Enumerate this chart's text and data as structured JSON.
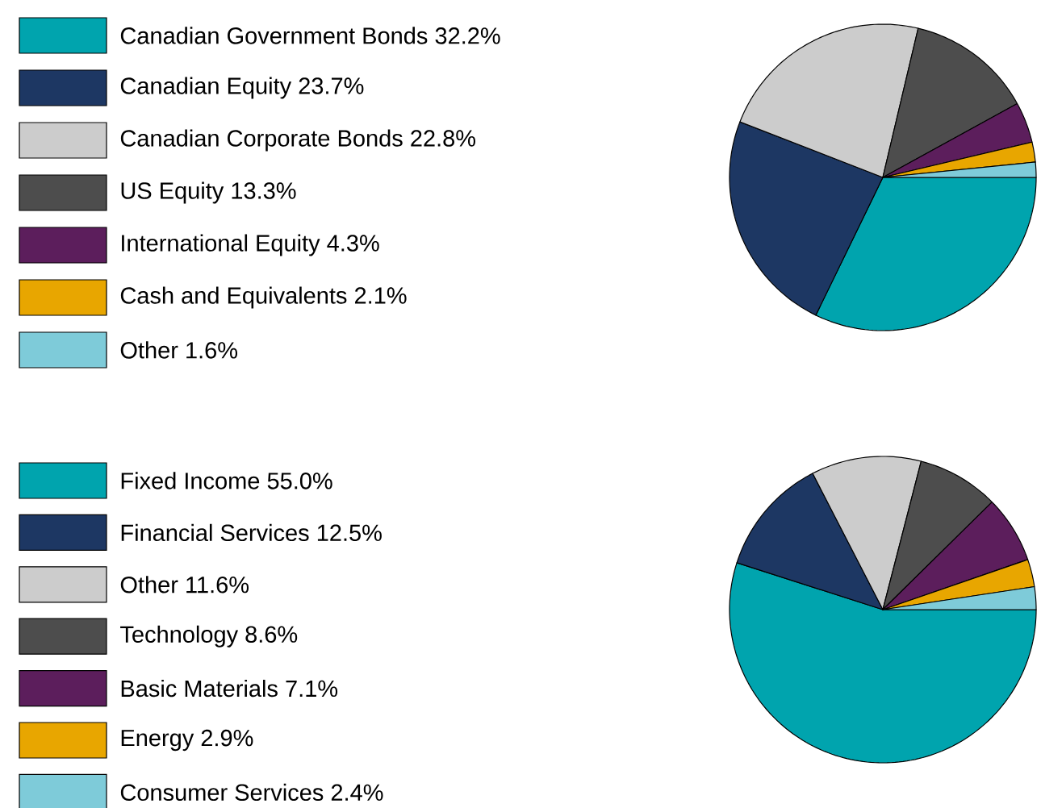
{
  "chart_data": [
    {
      "type": "pie",
      "legend": "left",
      "categories": [
        "Canadian Government Bonds 32.2%",
        "Canadian Equity 23.7%",
        "Canadian Corporate Bonds 22.8%",
        "US Equity 13.3%",
        "International Equity 4.3%",
        "Cash and Equivalents 2.1%",
        "Other 1.6%"
      ],
      "values": [
        32.2,
        23.7,
        22.8,
        13.3,
        4.3,
        2.1,
        1.6
      ],
      "colors": [
        "#00a4ae",
        "#1d3763",
        "#cccccc",
        "#4d4d4d",
        "#5c1e5c",
        "#e8a600",
        "#7ecbd9"
      ]
    },
    {
      "type": "pie",
      "legend": "left",
      "categories": [
        "Fixed Income 55.0%",
        "Financial Services 12.5%",
        "Other 11.6%",
        "Technology 8.6%",
        "Basic Materials 7.1%",
        "Energy 2.9%",
        "Consumer Services 2.4%"
      ],
      "values": [
        55.0,
        12.5,
        11.6,
        8.6,
        7.1,
        2.9,
        2.4
      ],
      "colors": [
        "#00a4ae",
        "#1d3763",
        "#cccccc",
        "#4d4d4d",
        "#5c1e5c",
        "#e8a600",
        "#7ecbd9"
      ]
    }
  ]
}
